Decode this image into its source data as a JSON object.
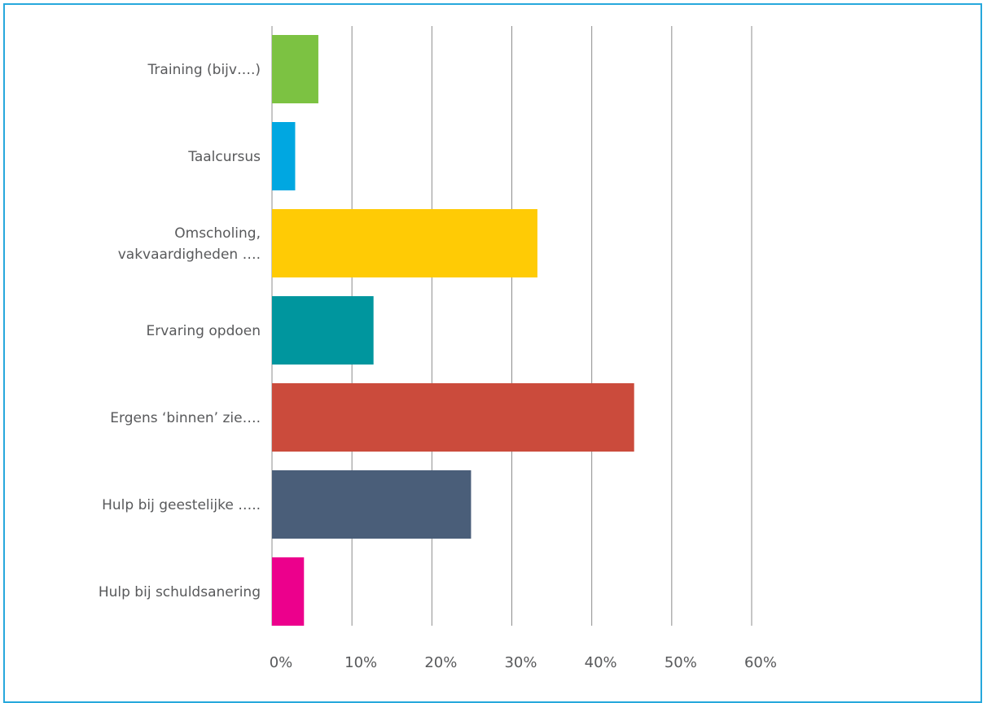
{
  "chart_data": {
    "type": "bar",
    "orientation": "horizontal",
    "categories": [
      "Training (bijv….)",
      "Taalcursus",
      "Omscholing, vakvaardigheden ….",
      "Ervaring opdoen",
      "Ergens ‘binnen’ zie….",
      "Hulp bij  geestelijke …..",
      "Hulp bij schuldsanering"
    ],
    "category_lines": [
      [
        "Training (bijv….)"
      ],
      [
        "Taalcursus"
      ],
      [
        "Omscholing,",
        "vakvaardigheden …."
      ],
      [
        "Ervaring opdoen"
      ],
      [
        "Ergens ‘binnen’ zie…."
      ],
      [
        "Hulp bij  geestelijke ….."
      ],
      [
        "Hulp bij schuldsanering"
      ]
    ],
    "values": [
      5.8,
      2.9,
      33.2,
      12.7,
      45.3,
      24.9,
      4.0
    ],
    "colors": [
      "#7cc242",
      "#00a7e1",
      "#ffcb05",
      "#00969e",
      "#cb4b3c",
      "#4a5e79",
      "#ec008c"
    ],
    "xlim": [
      0,
      60
    ],
    "x_ticks": [
      0,
      10,
      20,
      30,
      40,
      50,
      60
    ],
    "x_tick_labels": [
      "0%",
      "10%",
      "20%",
      "30%",
      "40%",
      "50%",
      "60%"
    ],
    "grid": true,
    "legend": false,
    "title": "",
    "xlabel": "",
    "ylabel": ""
  }
}
